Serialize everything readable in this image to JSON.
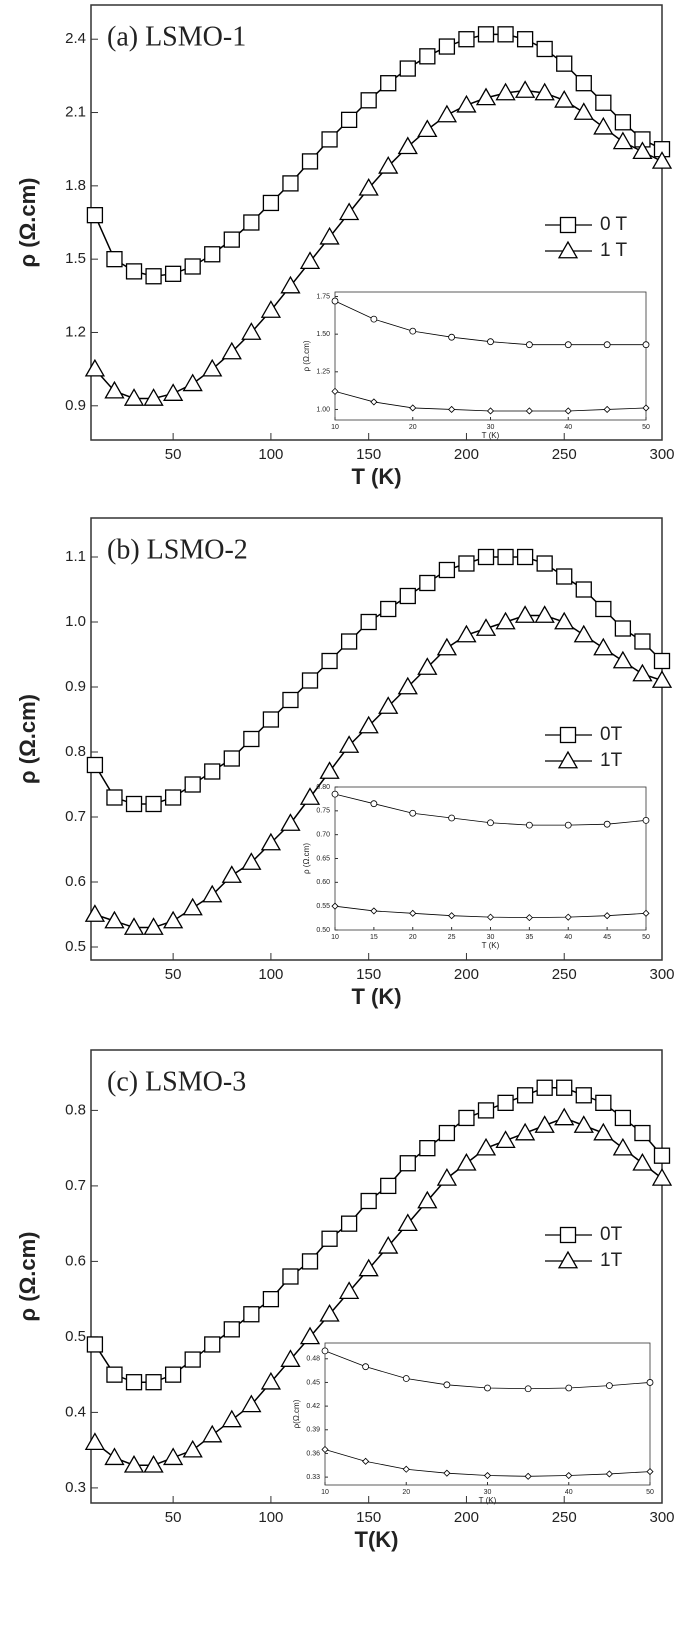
{
  "chart_data": [
    {
      "type": "scatter",
      "title": "(a) LSMO-1",
      "xlabel": "T (K)",
      "ylabel": "ρ (Ω.cm)",
      "x": [
        10,
        20,
        30,
        40,
        50,
        60,
        70,
        80,
        90,
        100,
        110,
        120,
        130,
        140,
        150,
        160,
        170,
        180,
        190,
        200,
        210,
        220,
        230,
        240,
        250,
        260,
        270,
        280,
        290,
        300
      ],
      "series": [
        {
          "name": "0 T",
          "color": "#000000",
          "marker": "square",
          "values": [
            1.68,
            1.5,
            1.45,
            1.43,
            1.44,
            1.47,
            1.52,
            1.58,
            1.65,
            1.73,
            1.81,
            1.9,
            1.99,
            2.07,
            2.15,
            2.22,
            2.28,
            2.33,
            2.37,
            2.4,
            2.42,
            2.42,
            2.4,
            2.36,
            2.3,
            2.22,
            2.14,
            2.06,
            1.99,
            1.95
          ]
        },
        {
          "name": "1 T",
          "color": "#000000",
          "marker": "triangle",
          "values": [
            1.05,
            0.96,
            0.93,
            0.93,
            0.95,
            0.99,
            1.05,
            1.12,
            1.2,
            1.29,
            1.39,
            1.49,
            1.59,
            1.69,
            1.79,
            1.88,
            1.96,
            2.03,
            2.09,
            2.13,
            2.16,
            2.18,
            2.19,
            2.18,
            2.15,
            2.1,
            2.04,
            1.98,
            1.94,
            1.9
          ]
        }
      ],
      "xlim": [
        8,
        300
      ],
      "ylim": [
        0.76,
        2.54
      ],
      "xticks": [
        50,
        100,
        150,
        200,
        250,
        300
      ],
      "yticks": [
        {
          "value": 0.9,
          "label": "0.9"
        },
        {
          "value": 1.2,
          "label": "1.2"
        },
        1.5,
        1.8,
        2.1,
        2.4
      ],
      "inset": {
        "type": "scatter",
        "xlabel": "T (K)",
        "ylabel": "ρ (Ω.cm)",
        "x": [
          10,
          15,
          20,
          25,
          30,
          35,
          40,
          45,
          50
        ],
        "series": [
          {
            "color": "#000000",
            "marker": "circle",
            "values": [
              1.72,
              1.6,
              1.52,
              1.48,
              1.45,
              1.43,
              1.43,
              1.43,
              1.43
            ]
          },
          {
            "color": "#000000",
            "marker": "diamond",
            "values": [
              1.12,
              1.05,
              1.01,
              1.0,
              0.99,
              0.99,
              0.99,
              1.0,
              1.01
            ]
          }
        ],
        "xlim": [
          10,
          50
        ],
        "ylim": [
          0.93,
          1.78
        ],
        "xticks": [
          10,
          20,
          30,
          40,
          50
        ],
        "yticks": [
          {
            "value": 1,
            "label": "1.00"
          },
          1.25,
          {
            "value": 1.5,
            "label": "1.50"
          },
          1.75
        ]
      }
    },
    {
      "type": "scatter",
      "title": "(b) LSMO-2",
      "xlabel": "T (K)",
      "ylabel": "ρ (Ω.cm)",
      "x": [
        10,
        20,
        30,
        40,
        50,
        60,
        70,
        80,
        90,
        100,
        110,
        120,
        130,
        140,
        150,
        160,
        170,
        180,
        190,
        200,
        210,
        220,
        230,
        240,
        250,
        260,
        270,
        280,
        290,
        300
      ],
      "series": [
        {
          "name": "0T",
          "color": "#000000",
          "marker": "square",
          "values": [
            0.78,
            0.73,
            0.72,
            0.72,
            0.73,
            0.75,
            0.77,
            0.79,
            0.82,
            0.85,
            0.88,
            0.91,
            0.94,
            0.97,
            1.0,
            1.02,
            1.04,
            1.06,
            1.08,
            1.09,
            1.1,
            1.1,
            1.1,
            1.09,
            1.07,
            1.05,
            1.02,
            0.99,
            0.97,
            0.94
          ]
        },
        {
          "name": "1T",
          "color": "#000000",
          "marker": "triangle",
          "values": [
            0.55,
            0.54,
            0.53,
            0.53,
            0.54,
            0.56,
            0.58,
            0.61,
            0.63,
            0.66,
            0.69,
            0.73,
            0.77,
            0.81,
            0.84,
            0.87,
            0.9,
            0.93,
            0.96,
            0.98,
            0.99,
            1.0,
            1.01,
            1.01,
            1.0,
            0.98,
            0.96,
            0.94,
            0.92,
            0.91
          ]
        }
      ],
      "xlim": [
        8,
        300
      ],
      "ylim": [
        0.48,
        1.16
      ],
      "xticks": [
        50,
        100,
        150,
        200,
        250,
        300
      ],
      "yticks": [
        0.5,
        0.6,
        0.7,
        0.8,
        0.9,
        {
          "value": 1,
          "label": "1.0"
        },
        1.1
      ],
      "inset": {
        "type": "scatter",
        "xlabel": "T (K)",
        "ylabel": "ρ (Ω.cm)",
        "x": [
          10,
          15,
          20,
          25,
          30,
          35,
          40,
          45,
          50
        ],
        "series": [
          {
            "color": "#000000",
            "marker": "circle",
            "values": [
              0.785,
              0.765,
              0.745,
              0.735,
              0.725,
              0.72,
              0.72,
              0.722,
              0.73
            ]
          },
          {
            "color": "#000000",
            "marker": "diamond",
            "values": [
              0.55,
              0.54,
              0.535,
              0.53,
              0.527,
              0.526,
              0.527,
              0.53,
              0.535
            ]
          }
        ],
        "xlim": [
          10,
          50
        ],
        "ylim": [
          0.5,
          0.8
        ],
        "xticks": [
          10,
          15,
          20,
          25,
          30,
          35,
          40,
          45,
          50
        ],
        "yticks": [
          {
            "value": 0.5,
            "label": "0.50"
          },
          0.55,
          {
            "value": 0.6,
            "label": "0.60"
          },
          0.65,
          {
            "value": 0.7,
            "label": "0.70"
          },
          0.75,
          {
            "value": 0.8,
            "label": "0.80"
          }
        ]
      }
    },
    {
      "type": "scatter",
      "title": "(c) LSMO-3",
      "xlabel": "T(K)",
      "ylabel": "ρ (Ω.cm)",
      "x": [
        10,
        20,
        30,
        40,
        50,
        60,
        70,
        80,
        90,
        100,
        110,
        120,
        130,
        140,
        150,
        160,
        170,
        180,
        190,
        200,
        210,
        220,
        230,
        240,
        250,
        260,
        270,
        280,
        290,
        300
      ],
      "series": [
        {
          "name": "0T",
          "color": "#000000",
          "marker": "square",
          "values": [
            0.49,
            0.45,
            0.44,
            0.44,
            0.45,
            0.47,
            0.49,
            0.51,
            0.53,
            0.55,
            0.58,
            0.6,
            0.63,
            0.65,
            0.68,
            0.7,
            0.73,
            0.75,
            0.77,
            0.79,
            0.8,
            0.81,
            0.82,
            0.83,
            0.83,
            0.82,
            0.81,
            0.79,
            0.77,
            0.74
          ]
        },
        {
          "name": "1T",
          "color": "#000000",
          "marker": "triangle",
          "values": [
            0.36,
            0.34,
            0.33,
            0.33,
            0.34,
            0.35,
            0.37,
            0.39,
            0.41,
            0.44,
            0.47,
            0.5,
            0.53,
            0.56,
            0.59,
            0.62,
            0.65,
            0.68,
            0.71,
            0.73,
            0.75,
            0.76,
            0.77,
            0.78,
            0.79,
            0.78,
            0.77,
            0.75,
            0.73,
            0.71
          ]
        }
      ],
      "xlim": [
        8,
        300
      ],
      "ylim": [
        0.28,
        0.88
      ],
      "xticks": [
        50,
        100,
        150,
        200,
        250,
        300
      ],
      "yticks": [
        0.3,
        0.4,
        0.5,
        0.6,
        0.7,
        0.8
      ],
      "inset": {
        "type": "scatter",
        "xlabel": "T (K)",
        "ylabel": "ρ(Ω.cm)",
        "x": [
          10,
          15,
          20,
          25,
          30,
          35,
          40,
          45,
          50
        ],
        "series": [
          {
            "color": "#000000",
            "marker": "circle",
            "values": [
              0.49,
              0.47,
              0.455,
              0.447,
              0.443,
              0.442,
              0.443,
              0.446,
              0.45
            ]
          },
          {
            "color": "#000000",
            "marker": "diamond",
            "values": [
              0.365,
              0.35,
              0.34,
              0.335,
              0.332,
              0.331,
              0.332,
              0.334,
              0.337
            ]
          }
        ],
        "xlim": [
          10,
          50
        ],
        "ylim": [
          0.32,
          0.5
        ],
        "xticks": [
          10,
          20,
          30,
          40,
          50
        ],
        "yticks": [
          0.33,
          0.36,
          0.39,
          0.42,
          0.45,
          0.48
        ]
      }
    }
  ]
}
